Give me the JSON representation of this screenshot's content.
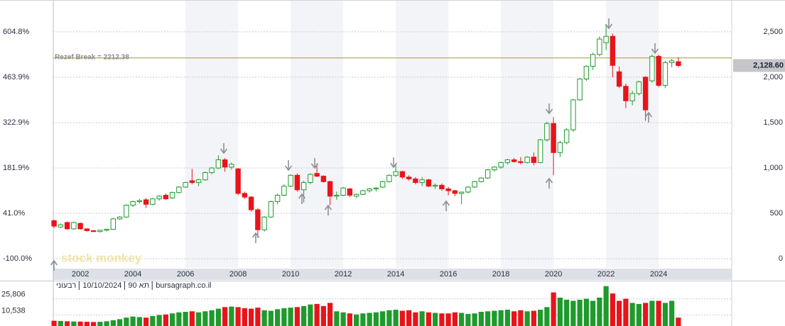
{
  "chart_data": {
    "type": "candlestick",
    "x": [
      2001,
      2001.25,
      2001.5,
      2001.75,
      2002,
      2002.25,
      2002.5,
      2002.75,
      2003,
      2003.25,
      2003.5,
      2003.75,
      2004,
      2004.25,
      2004.5,
      2004.75,
      2005,
      2005.25,
      2005.5,
      2005.75,
      2006,
      2006.25,
      2006.5,
      2006.75,
      2007,
      2007.25,
      2007.5,
      2007.75,
      2008,
      2008.25,
      2008.5,
      2008.75,
      2009,
      2009.25,
      2009.5,
      2009.75,
      2010,
      2010.25,
      2010.5,
      2010.75,
      2011,
      2011.25,
      2011.5,
      2011.75,
      2012,
      2012.25,
      2012.5,
      2012.75,
      2013,
      2013.25,
      2013.5,
      2013.75,
      2014,
      2014.25,
      2014.5,
      2014.75,
      2015,
      2015.25,
      2015.5,
      2015.75,
      2016,
      2016.25,
      2016.5,
      2016.75,
      2017,
      2017.25,
      2017.5,
      2017.75,
      2018,
      2018.25,
      2018.5,
      2018.75,
      2019,
      2019.25,
      2019.5,
      2019.75,
      2020,
      2020.25,
      2020.5,
      2020.75,
      2021,
      2021.25,
      2021.5,
      2021.75,
      2022,
      2022.25,
      2022.5,
      2022.75,
      2023,
      2023.25,
      2023.5,
      2023.75,
      2024,
      2024.25,
      2024.5,
      2024.75
    ],
    "open": [
      420,
      350,
      400,
      330,
      390,
      330,
      310,
      300,
      315,
      325,
      440,
      460,
      590,
      630,
      650,
      600,
      660,
      700,
      670,
      730,
      790,
      860,
      840,
      870,
      950,
      1000,
      1090,
      1010,
      990,
      720,
      680,
      540,
      320,
      460,
      630,
      700,
      800,
      920,
      760,
      840,
      940,
      910,
      850,
      690,
      700,
      770,
      690,
      710,
      750,
      770,
      790,
      850,
      920,
      960,
      900,
      880,
      840,
      870,
      800,
      810,
      770,
      750,
      720,
      735,
      790,
      850,
      890,
      980,
      1010,
      1060,
      1090,
      1070,
      1060,
      1120,
      1060,
      1310,
      1490,
      1170,
      1280,
      1420,
      1750,
      1980,
      2120,
      2250,
      2380,
      2450,
      2060,
      1900,
      1740,
      1820,
      2000,
      1960,
      2230,
      1910,
      2160,
      2170
    ],
    "high": [
      430,
      390,
      410,
      410,
      400,
      335,
      315,
      320,
      330,
      450,
      470,
      600,
      640,
      660,
      670,
      670,
      700,
      720,
      740,
      800,
      850,
      990,
      880,
      960,
      1010,
      1140,
      1110,
      1060,
      1000,
      740,
      690,
      560,
      470,
      640,
      720,
      820,
      930,
      940,
      860,
      940,
      1050,
      920,
      860,
      740,
      790,
      780,
      720,
      760,
      780,
      790,
      860,
      930,
      1050,
      970,
      920,
      900,
      900,
      880,
      830,
      830,
      790,
      760,
      740,
      800,
      860,
      900,
      990,
      1020,
      1070,
      1100,
      1110,
      1120,
      1130,
      1170,
      1320,
      1510,
      1560,
      1300,
      1440,
      1760,
      1990,
      2130,
      2270,
      2450,
      2580,
      2480,
      2120,
      1930,
      1850,
      1960,
      2010,
      2250,
      2250,
      2180,
      2200,
      2220
    ],
    "low": [
      340,
      340,
      320,
      320,
      320,
      300,
      295,
      290,
      300,
      320,
      430,
      450,
      570,
      610,
      560,
      590,
      640,
      650,
      660,
      720,
      780,
      820,
      800,
      860,
      930,
      990,
      960,
      980,
      700,
      660,
      520,
      230,
      300,
      450,
      600,
      690,
      790,
      740,
      620,
      820,
      900,
      840,
      590,
      650,
      690,
      680,
      670,
      700,
      730,
      740,
      780,
      840,
      900,
      880,
      860,
      820,
      800,
      790,
      770,
      750,
      700,
      690,
      600,
      720,
      780,
      840,
      880,
      960,
      990,
      1040,
      1060,
      1040,
      1050,
      1030,
      1050,
      1290,
      920,
      1120,
      1260,
      1400,
      1740,
      1960,
      2080,
      2230,
      2300,
      2000,
      1880,
      1660,
      1690,
      1800,
      1520,
      1940,
      1890,
      1880,
      2110,
      2110
    ],
    "close": [
      360,
      375,
      330,
      400,
      330,
      310,
      300,
      315,
      325,
      440,
      460,
      590,
      630,
      640,
      600,
      660,
      690,
      660,
      730,
      790,
      840,
      840,
      870,
      950,
      1000,
      1090,
      1010,
      1040,
      720,
      680,
      540,
      320,
      460,
      630,
      700,
      800,
      920,
      760,
      840,
      930,
      910,
      850,
      690,
      700,
      780,
      700,
      710,
      750,
      770,
      780,
      850,
      920,
      960,
      900,
      880,
      840,
      870,
      800,
      810,
      770,
      750,
      720,
      735,
      790,
      850,
      890,
      980,
      1010,
      1060,
      1090,
      1070,
      1060,
      1120,
      1060,
      1310,
      1490,
      1170,
      1280,
      1420,
      1750,
      1980,
      2120,
      2250,
      2420,
      2450,
      2130,
      1900,
      1740,
      1820,
      1950,
      1640,
      2230,
      1910,
      2160,
      2180,
      2128.6
    ],
    "up_color": "#1f9a2c",
    "down_color": "#e8141b",
    "xlim": [
      2000.97,
      2026.78
    ],
    "xticks": [
      2002,
      2004,
      2006,
      2008,
      2010,
      2012,
      2014,
      2016,
      2018,
      2020,
      2022,
      2024
    ],
    "ylim": [
      -100,
      2850
    ],
    "yticks": [
      0,
      500,
      {
        "value": 1000,
        "label": "1,000"
      },
      {
        "value": 1500,
        "label": "1,500"
      },
      {
        "value": 2000,
        "label": "2,000"
      },
      {
        "value": 2500,
        "label": "2,500"
      }
    ],
    "y2lim": [
      -128.19,
      703.47
    ],
    "y2ticks": [
      {
        "value": -100,
        "label": "-100.0%"
      },
      {
        "value": 41,
        "label": "41.0%"
      },
      {
        "value": 181.9,
        "label": "181.9%"
      },
      {
        "value": 322.9,
        "label": "322.9%"
      },
      {
        "value": 463.9,
        "label": "463.9%"
      },
      {
        "value": 604.8,
        "label": "604.8%"
      }
    ],
    "grid": true,
    "reference_line": {
      "label": "Rezef Break = 2212.38",
      "value": 2212.38,
      "color": "#a89a3c"
    },
    "last_price": {
      "value": 2128.6,
      "label": "2,128.60"
    },
    "watermark": "stock monkey",
    "footer": [
      "רבעוני",
      "10/10/2024",
      "תא 90",
      "bursagraph.co.il"
    ],
    "volume": {
      "values": [
        5000,
        4800,
        4500,
        4300,
        4200,
        4000,
        3800,
        4000,
        4500,
        5500,
        6500,
        8000,
        9000,
        8500,
        8000,
        9500,
        10500,
        11000,
        12000,
        13000,
        13500,
        14000,
        13000,
        14000,
        15000,
        16500,
        18000,
        18500,
        18000,
        17000,
        16500,
        17500,
        15000,
        14500,
        16000,
        17000,
        17500,
        18000,
        19000,
        20500,
        21000,
        19000,
        22000,
        14000,
        13000,
        12000,
        11000,
        12000,
        12500,
        13000,
        14000,
        15000,
        15500,
        14500,
        15000,
        13000,
        14000,
        13000,
        12500,
        12000,
        12000,
        13000,
        12500,
        11500,
        12000,
        13500,
        14000,
        14500,
        15000,
        15500,
        14000,
        15000,
        14000,
        14500,
        15500,
        18000,
        32000,
        27000,
        25000,
        24000,
        25000,
        26000,
        24000,
        27000,
        38000,
        31000,
        24000,
        26000,
        22000,
        21000,
        22000,
        24000,
        24000,
        22000,
        24000,
        8000
      ],
      "ylim": [
        0,
        40500
      ],
      "yticks": [
        {
          "value": 10538,
          "label": "10,538"
        },
        {
          "value": 25806,
          "label": "25,806"
        }
      ]
    }
  }
}
